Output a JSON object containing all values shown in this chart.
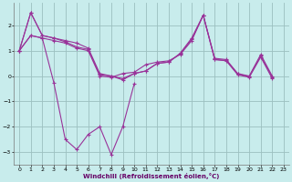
{
  "xlabel": "Windchill (Refroidissement éolien,°C)",
  "background_color": "#c8ecec",
  "grid_color": "#9bbfbf",
  "line_color": "#993399",
  "xlim": [
    -0.5,
    23.5
  ],
  "ylim": [
    -3.5,
    2.9
  ],
  "xticks": [
    0,
    1,
    2,
    3,
    4,
    5,
    6,
    7,
    8,
    9,
    10,
    11,
    12,
    13,
    14,
    15,
    16,
    17,
    18,
    19,
    20,
    21,
    22,
    23
  ],
  "yticks": [
    -3,
    -2,
    -1,
    0,
    1,
    2
  ],
  "series1_x": [
    0,
    1,
    2,
    3,
    4,
    5,
    6,
    7,
    8,
    9,
    10,
    11,
    12,
    13,
    14,
    15,
    16,
    17,
    18,
    19,
    20,
    21,
    22
  ],
  "series1_y": [
    1.0,
    2.5,
    1.6,
    1.5,
    1.4,
    1.3,
    1.1,
    0.1,
    0.0,
    -0.1,
    0.1,
    0.2,
    0.5,
    0.55,
    0.9,
    1.5,
    2.4,
    0.7,
    0.65,
    0.1,
    0.0,
    0.85,
    0.0
  ],
  "series2_x": [
    0,
    1,
    2,
    3,
    4,
    5,
    6,
    7,
    8,
    9,
    10,
    11,
    12,
    13,
    14,
    15,
    16,
    17,
    18,
    19,
    20,
    21,
    22
  ],
  "series2_y": [
    1.0,
    1.6,
    1.5,
    1.4,
    1.3,
    1.1,
    1.0,
    0.0,
    -0.05,
    0.1,
    0.15,
    0.45,
    0.55,
    0.6,
    0.85,
    1.4,
    2.4,
    0.65,
    0.6,
    0.05,
    -0.05,
    0.75,
    -0.1
  ],
  "series3_x": [
    0,
    1,
    2,
    3,
    4,
    5,
    6,
    7,
    8,
    9,
    10
  ],
  "series3_y": [
    1.0,
    1.6,
    1.5,
    -0.25,
    -2.5,
    -2.9,
    -2.3,
    -2.0,
    -3.1,
    -2.0,
    -0.3
  ],
  "series4_x": [
    0,
    1,
    2,
    3,
    4,
    5,
    6,
    7,
    8,
    9,
    10,
    11,
    12,
    13,
    14,
    15,
    16,
    17,
    18,
    19,
    20,
    21,
    22
  ],
  "series4_y": [
    1.0,
    2.5,
    1.6,
    1.5,
    1.35,
    1.15,
    1.05,
    0.05,
    0.0,
    -0.15,
    0.1,
    0.2,
    0.5,
    0.55,
    0.88,
    1.45,
    2.4,
    0.65,
    0.62,
    0.08,
    -0.02,
    0.8,
    -0.05
  ]
}
